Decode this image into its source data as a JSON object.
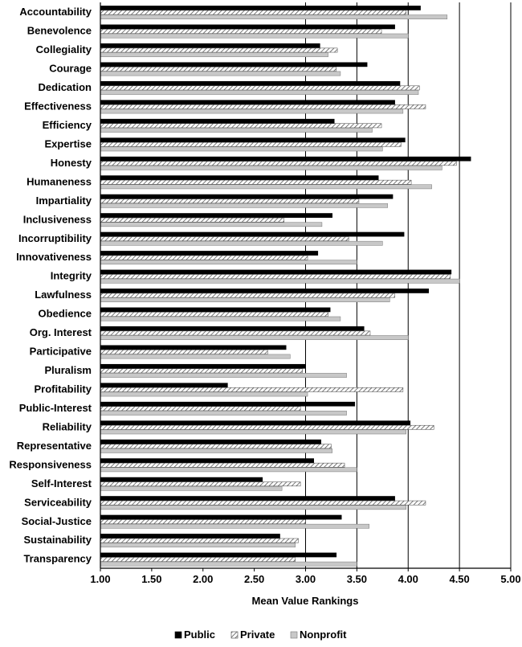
{
  "chart_data": {
    "type": "bar",
    "orientation": "horizontal",
    "xlabel": "Mean Value Rankings",
    "xlim": [
      1.0,
      5.0
    ],
    "x_ticks": [
      "1.00",
      "1.50",
      "2.00",
      "2.50",
      "3.00",
      "3.50",
      "4.00",
      "4.50",
      "5.00"
    ],
    "grid": "vertical at 3.00, 3.50, 4.00, 4.50, 5.00",
    "legend_position": "bottom",
    "categories": [
      "Accountability",
      "Benevolence",
      "Collegiality",
      "Courage",
      "Dedication",
      "Effectiveness",
      "Efficiency",
      "Expertise",
      "Honesty",
      "Humaneness",
      "Impartiality",
      "Inclusiveness",
      "Incorruptibility",
      "Innovativeness",
      "Integrity",
      "Lawfulness",
      "Obedience",
      "Org. Interest",
      "Participative",
      "Pluralism",
      "Profitability",
      "Public-Interest",
      "Reliability",
      "Representative",
      "Responsiveness",
      "Self-Interest",
      "Serviceability",
      "Social-Justice",
      "Sustainability",
      "Transparency"
    ],
    "series": [
      {
        "name": "Public",
        "pattern": "solid",
        "color": "#000000",
        "values": [
          4.12,
          3.87,
          3.14,
          3.6,
          3.92,
          3.87,
          3.28,
          3.97,
          4.61,
          3.71,
          3.85,
          3.26,
          3.96,
          3.12,
          4.42,
          4.2,
          3.24,
          3.57,
          2.81,
          3.0,
          2.24,
          3.48,
          4.02,
          3.15,
          3.08,
          2.58,
          3.87,
          3.35,
          2.75,
          3.3
        ]
      },
      {
        "name": "Private",
        "pattern": "diagonal-hatch",
        "color": "#777777",
        "values": [
          3.98,
          3.74,
          3.31,
          3.3,
          4.11,
          4.17,
          3.74,
          3.93,
          4.47,
          4.03,
          3.52,
          2.79,
          3.42,
          3.02,
          4.41,
          3.87,
          3.22,
          3.63,
          2.63,
          2.97,
          3.95,
          2.95,
          4.25,
          3.25,
          3.38,
          2.95,
          4.17,
          3.0,
          2.93,
          2.9
        ]
      },
      {
        "name": "Nonprofit",
        "pattern": "light-gray",
        "color": "#c8c8c8",
        "values": [
          4.38,
          4.0,
          3.22,
          3.34,
          4.1,
          3.95,
          3.65,
          3.75,
          4.33,
          4.23,
          3.8,
          3.16,
          3.75,
          3.5,
          4.5,
          3.82,
          3.34,
          4.0,
          2.85,
          3.4,
          3.02,
          3.4,
          3.98,
          3.26,
          3.5,
          2.77,
          3.98,
          3.62,
          2.9,
          3.5
        ]
      }
    ]
  }
}
